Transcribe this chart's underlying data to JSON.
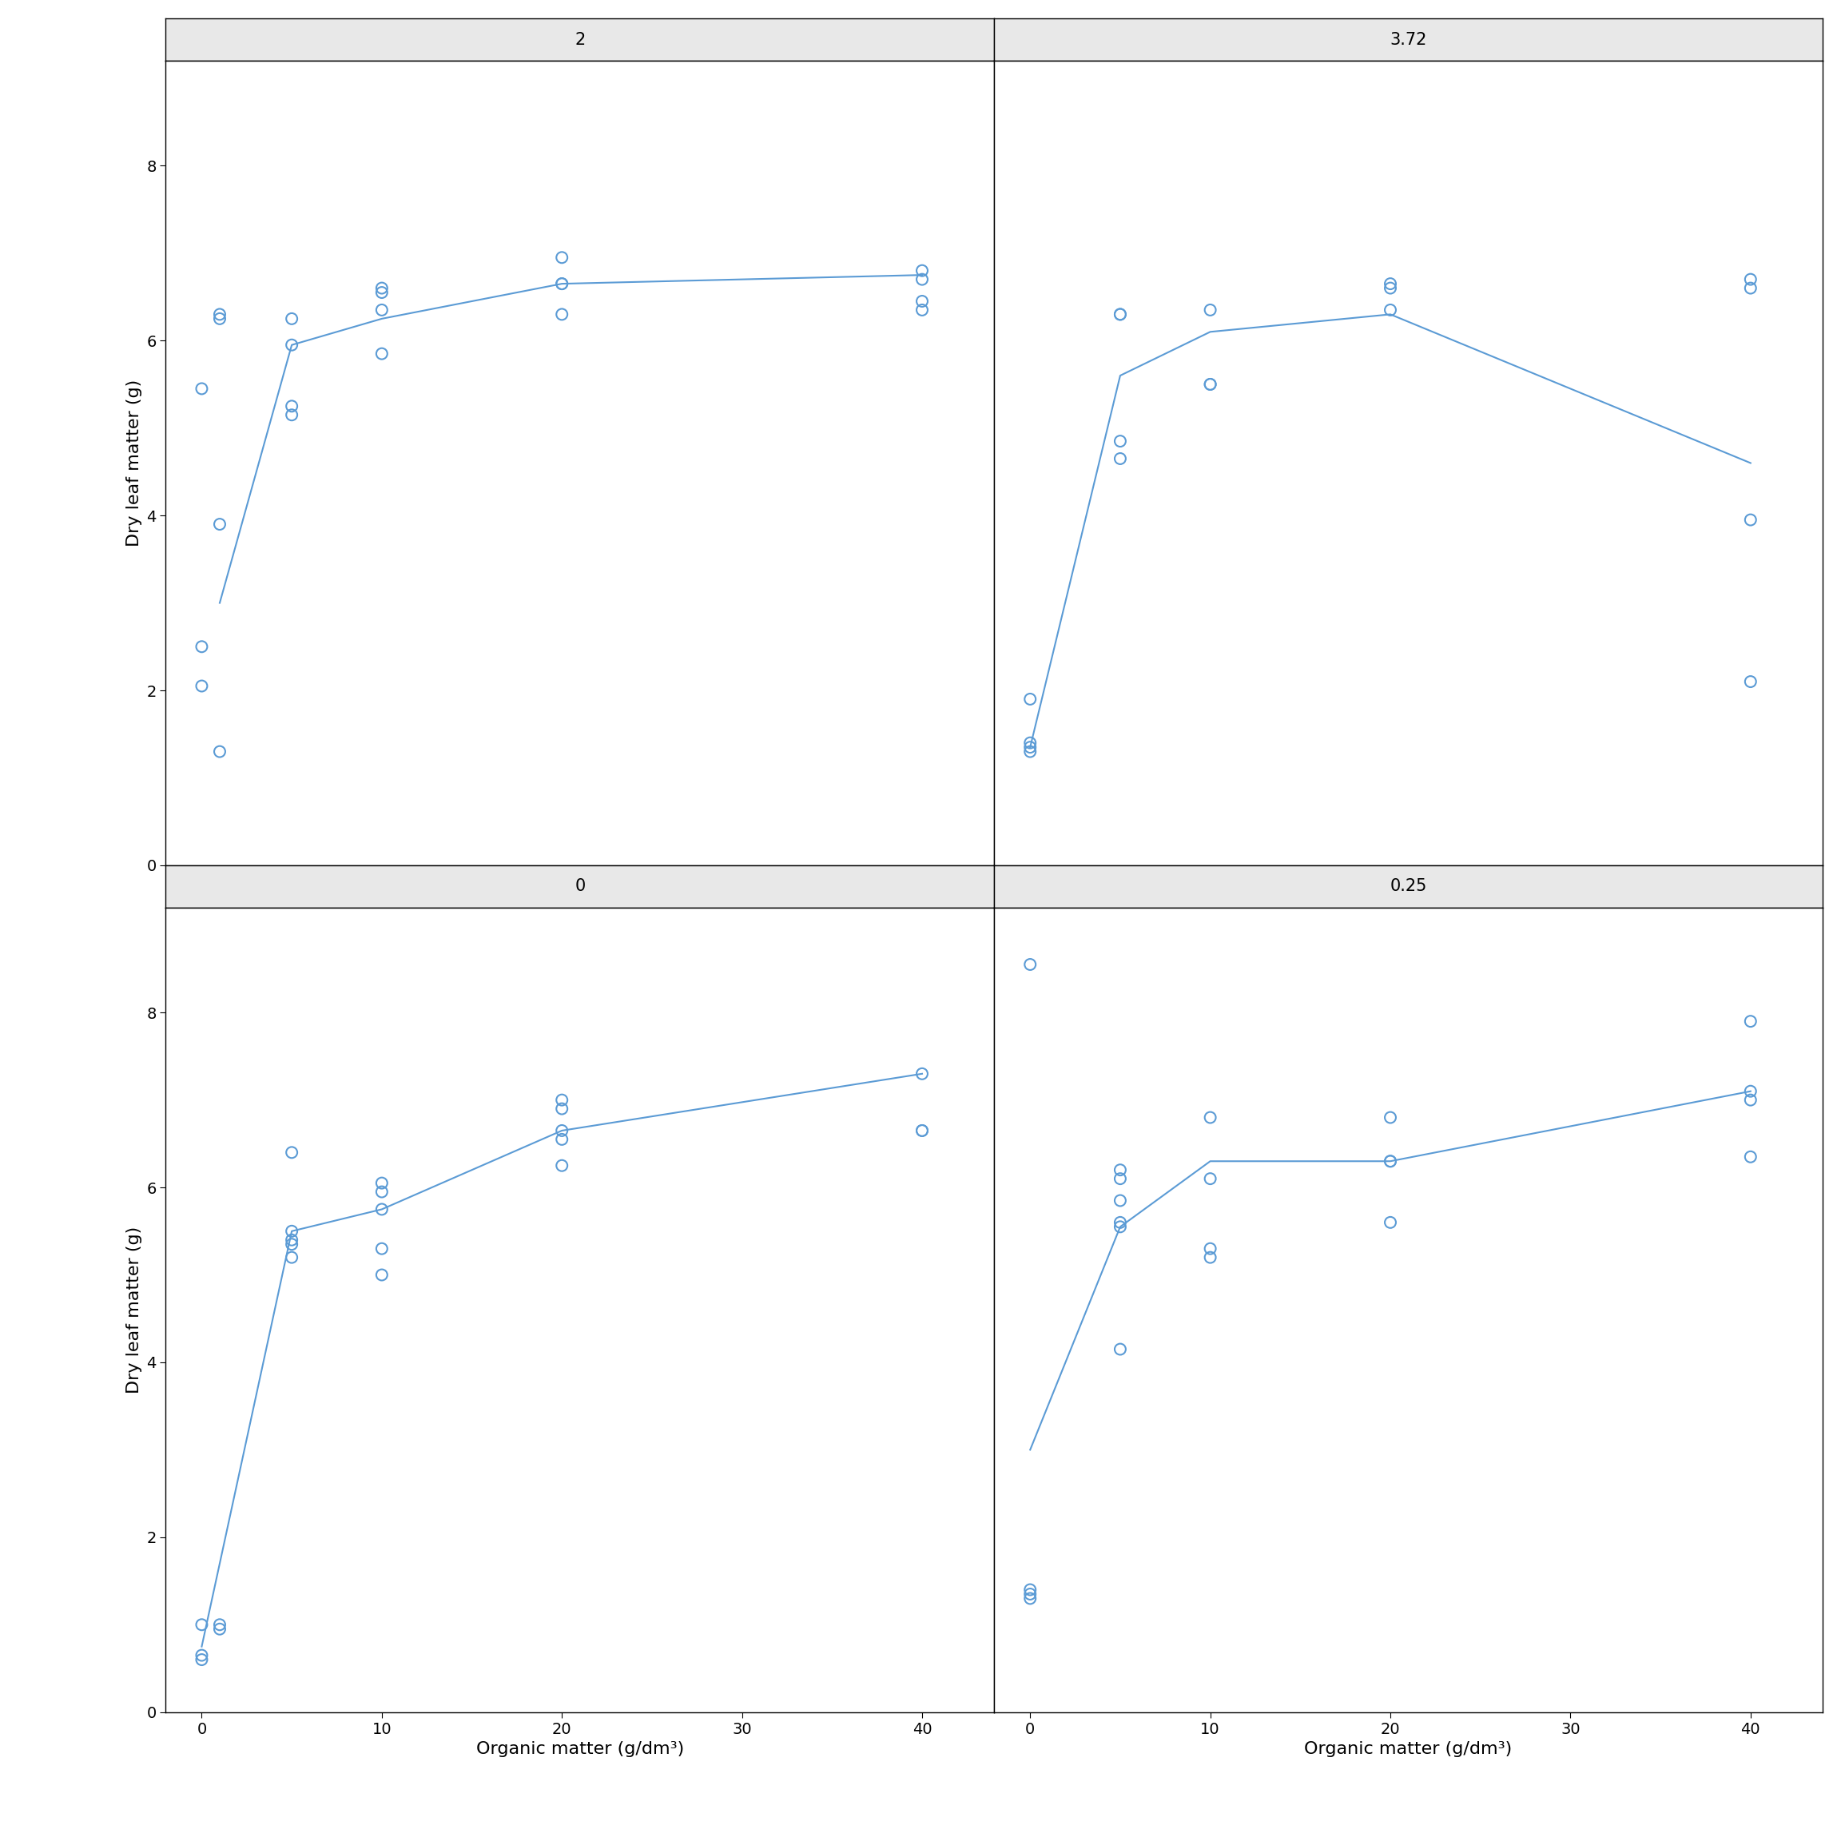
{
  "panels": [
    {
      "label": "2",
      "scatter_x": [
        0,
        0,
        0,
        1,
        1,
        1,
        1,
        5,
        5,
        5,
        5,
        10,
        10,
        10,
        10,
        20,
        20,
        20,
        20,
        40,
        40,
        40,
        40
      ],
      "scatter_y": [
        5.45,
        2.5,
        2.05,
        3.9,
        1.3,
        6.25,
        6.3,
        5.95,
        5.25,
        5.15,
        6.25,
        5.85,
        6.35,
        6.6,
        6.55,
        6.65,
        6.65,
        6.3,
        6.95,
        6.7,
        6.8,
        6.45,
        6.35
      ],
      "line_x": [
        1,
        5,
        10,
        20,
        40
      ],
      "line_y": [
        3.0,
        5.95,
        6.25,
        6.65,
        6.75
      ]
    },
    {
      "label": "3.72",
      "scatter_x": [
        0,
        0,
        0,
        0,
        5,
        5,
        5,
        5,
        10,
        10,
        10,
        20,
        20,
        20,
        40,
        40,
        40,
        40
      ],
      "scatter_y": [
        1.3,
        1.35,
        1.4,
        1.9,
        4.65,
        4.85,
        6.3,
        6.3,
        5.5,
        5.5,
        6.35,
        6.35,
        6.6,
        6.65,
        2.1,
        3.95,
        6.6,
        6.7
      ],
      "line_x": [
        0,
        5,
        10,
        20,
        40
      ],
      "line_y": [
        1.35,
        5.6,
        6.1,
        6.3,
        4.6
      ]
    },
    {
      "label": "0",
      "scatter_x": [
        0,
        0,
        0,
        1,
        1,
        5,
        5,
        5,
        5,
        5,
        10,
        10,
        10,
        10,
        10,
        20,
        20,
        20,
        20,
        20,
        40,
        40,
        40
      ],
      "scatter_y": [
        0.6,
        0.65,
        1.0,
        0.95,
        1.0,
        5.2,
        5.35,
        5.4,
        5.5,
        6.4,
        5.0,
        5.3,
        5.75,
        5.95,
        6.05,
        6.25,
        6.55,
        6.65,
        6.9,
        7.0,
        6.65,
        6.65,
        7.3
      ],
      "line_x": [
        0,
        5,
        10,
        20,
        40
      ],
      "line_y": [
        0.75,
        5.5,
        5.75,
        6.65,
        7.3
      ]
    },
    {
      "label": "0.25",
      "scatter_x": [
        0,
        0,
        0,
        0,
        5,
        5,
        5,
        5,
        5,
        5,
        10,
        10,
        10,
        10,
        20,
        20,
        20,
        20,
        40,
        40,
        40,
        40
      ],
      "scatter_y": [
        1.3,
        1.35,
        1.4,
        8.55,
        4.15,
        5.55,
        5.6,
        5.85,
        6.1,
        6.2,
        5.2,
        5.3,
        6.1,
        6.8,
        5.6,
        6.3,
        6.3,
        6.8,
        6.35,
        7.0,
        7.1,
        7.9
      ],
      "line_x": [
        0,
        5,
        10,
        20,
        40
      ],
      "line_y": [
        3.0,
        5.55,
        6.3,
        6.3,
        7.1
      ]
    }
  ],
  "panel_order": [
    [
      "2",
      "3.72"
    ],
    [
      "0",
      "0.25"
    ]
  ],
  "ylim": [
    0,
    9.2
  ],
  "xlim": [
    -2,
    44
  ],
  "xticks": [
    0,
    10,
    20,
    30,
    40
  ],
  "yticks": [
    0,
    2,
    4,
    6,
    8
  ],
  "xlabel": "Organic matter (g/dm³)",
  "ylabel": "Dry leaf matter (g)",
  "line_color": "#5B9BD5",
  "scatter_color": "#5B9BD5",
  "background_color": "#ffffff",
  "strip_bg_color": "#E8E8E8",
  "strip_border_color": "#000000",
  "axis_color": "#000000",
  "title_fontsize": 15,
  "label_fontsize": 16,
  "tick_fontsize": 14,
  "scatter_size": 100,
  "scatter_lw": 1.5,
  "line_width": 1.5
}
